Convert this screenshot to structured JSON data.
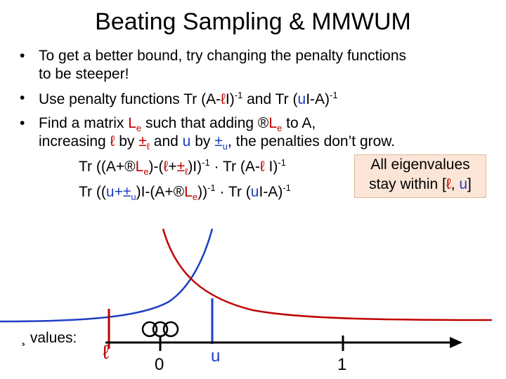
{
  "title": "Beating Sampling & MMWUM",
  "lines": [
    [
      "To get a better bound, try changing the penalty functions"
    ],
    [
      "to be steeper!"
    ],
    [
      "Use penalty functions Tr (A-",
      "ℓ",
      "I)",
      "-1",
      " and Tr (",
      "u",
      "I-A)",
      "-1"
    ],
    [
      "Find a matrix ",
      "L",
      "e",
      " such that adding ®",
      "L",
      "e",
      " to A,"
    ],
    [
      "increasing ",
      "ℓ",
      " by ",
      "±",
      "ℓ",
      " and ",
      "u",
      " by ",
      "±",
      "u",
      ", the penalties don’t grow."
    ]
  ],
  "formulas": [
    [
      "Tr ((A+®",
      "L",
      "e",
      ")-(",
      "ℓ",
      "+",
      "±",
      "ℓ",
      ")I)",
      "-1",
      " · Tr (A-",
      "ℓ",
      " I)",
      "-1"
    ],
    [
      "Tr ((",
      "u",
      "+",
      "±",
      "u",
      ")I-(A+®",
      "L",
      "e",
      "))",
      "-1",
      " · Tr (",
      "u",
      "I-A)",
      "-1"
    ]
  ],
  "box": [
    "All eigenvalues",
    "stay within [",
    "ℓ",
    ", ",
    "u",
    "]"
  ],
  "axis": {
    "label": "¸ values:",
    "lower": "ℓ",
    "zero": "0",
    "upper": "u",
    "one": "1"
  }
}
